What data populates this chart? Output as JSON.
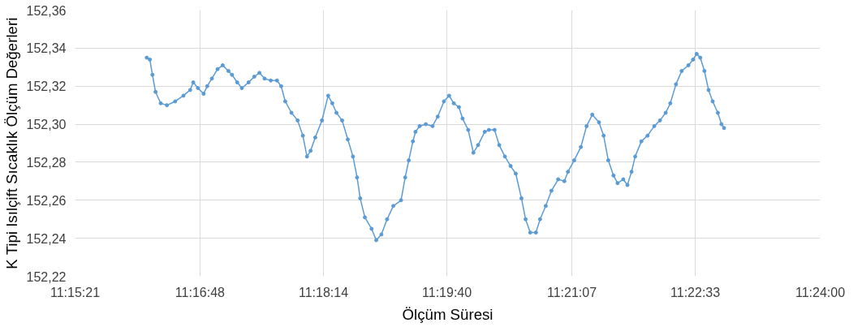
{
  "chart_data": {
    "type": "line",
    "xlabel": "Ölçüm Süresi",
    "ylabel": "K Tipi Isılçift Sıcaklık Ölçüm Değerleri",
    "xlim": [
      11.255833,
      11.4
    ],
    "ylim": [
      152.22,
      152.36
    ],
    "xticks": [
      {
        "value": 11.255833,
        "label": "11:15:21"
      },
      {
        "value": 11.28,
        "label": "11:16:48"
      },
      {
        "value": 11.303889,
        "label": "11:18:14"
      },
      {
        "value": 11.327778,
        "label": "11:19:40"
      },
      {
        "value": 11.351944,
        "label": "11:21:07"
      },
      {
        "value": 11.375833,
        "label": "11:22:33"
      },
      {
        "value": 11.4,
        "label": "11:24:00"
      }
    ],
    "yticks": [
      {
        "value": 152.22,
        "label": "152,22"
      },
      {
        "value": 152.24,
        "label": "152,24"
      },
      {
        "value": 152.26,
        "label": "152,26"
      },
      {
        "value": 152.28,
        "label": "152,28"
      },
      {
        "value": 152.3,
        "label": "152,30"
      },
      {
        "value": 152.32,
        "label": "152,32"
      },
      {
        "value": 152.34,
        "label": "152,34"
      },
      {
        "value": 152.36,
        "label": "152,36"
      }
    ],
    "grid": true,
    "marker": "circle",
    "line_style": "solid",
    "series": [
      {
        "color": "#5b9bd5",
        "x": [
          11.2697,
          11.2703,
          11.2708,
          11.2714,
          11.2724,
          11.2736,
          11.2752,
          11.2768,
          11.2781,
          11.2787,
          11.2796,
          11.2807,
          11.2814,
          11.2823,
          11.2834,
          11.2844,
          11.2855,
          11.2862,
          11.2872,
          11.2881,
          11.2894,
          11.2905,
          11.2915,
          11.2925,
          11.2937,
          11.2949,
          11.2957,
          11.2965,
          11.2977,
          11.2989,
          11.2999,
          11.3007,
          11.3014,
          11.3023,
          11.3036,
          11.3048,
          11.3056,
          11.3064,
          11.3075,
          11.3086,
          11.3096,
          11.3104,
          11.311,
          11.3119,
          11.3132,
          11.3141,
          11.3151,
          11.3162,
          11.3174,
          11.3189,
          11.3197,
          11.3204,
          11.3212,
          11.3217,
          11.3225,
          11.3237,
          11.325,
          11.326,
          11.3272,
          11.3282,
          11.3291,
          11.3301,
          11.3308,
          11.3319,
          11.3329,
          11.3338,
          11.3351,
          11.3359,
          11.337,
          11.3379,
          11.339,
          11.3401,
          11.3411,
          11.3422,
          11.343,
          11.3439,
          11.345,
          11.3458,
          11.3469,
          11.348,
          11.3493,
          11.3505,
          11.3512,
          11.3524,
          11.3537,
          11.3548,
          11.3559,
          11.3572,
          11.3581,
          11.359,
          11.36,
          11.3608,
          11.3619,
          11.3627,
          11.3635,
          11.3642,
          11.3654,
          11.3666,
          11.3679,
          11.369,
          11.3701,
          11.371,
          11.3721,
          11.3732,
          11.3745,
          11.3754,
          11.3761,
          11.3768,
          11.3776,
          11.3784,
          11.3792,
          11.3802,
          11.3809,
          11.3814
        ],
        "values": [
          152.335,
          152.334,
          152.326,
          152.317,
          152.311,
          152.31,
          152.312,
          152.315,
          152.318,
          152.322,
          152.319,
          152.316,
          152.32,
          152.324,
          152.329,
          152.331,
          152.328,
          152.326,
          152.322,
          152.319,
          152.322,
          152.325,
          152.327,
          152.324,
          152.323,
          152.323,
          152.32,
          152.312,
          152.306,
          152.302,
          152.294,
          152.283,
          152.286,
          152.293,
          152.302,
          152.315,
          152.311,
          152.306,
          152.302,
          152.292,
          152.283,
          152.272,
          152.261,
          152.251,
          152.245,
          152.239,
          152.242,
          152.25,
          152.257,
          152.26,
          152.272,
          152.281,
          152.291,
          152.296,
          152.299,
          152.3,
          152.299,
          152.304,
          152.312,
          152.315,
          152.311,
          152.309,
          152.303,
          152.297,
          152.285,
          152.289,
          152.296,
          152.297,
          152.297,
          152.289,
          152.283,
          152.278,
          152.274,
          152.261,
          152.25,
          152.243,
          152.243,
          152.25,
          152.257,
          152.265,
          152.271,
          152.27,
          152.275,
          152.281,
          152.288,
          152.299,
          152.305,
          152.301,
          152.294,
          152.281,
          152.273,
          152.269,
          152.271,
          152.268,
          152.275,
          152.283,
          152.291,
          152.294,
          152.299,
          152.302,
          152.306,
          152.311,
          152.321,
          152.328,
          152.331,
          152.334,
          152.337,
          152.335,
          152.328,
          152.318,
          152.312,
          152.306,
          152.3,
          152.298
        ]
      }
    ]
  }
}
